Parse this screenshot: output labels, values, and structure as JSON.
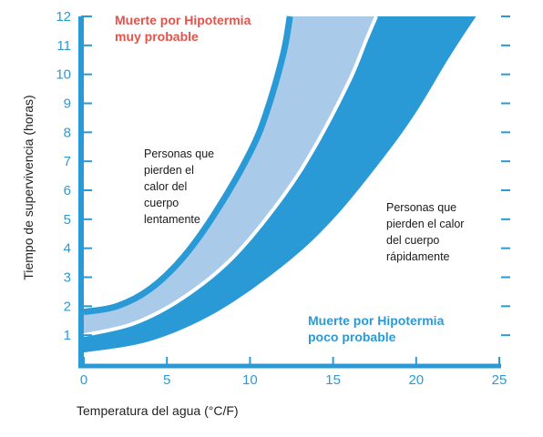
{
  "chart_data": {
    "type": "area",
    "xlabel": "Temperatura del agua (°C/F)",
    "ylabel": "Tiempo de supervivencia (horas)",
    "xlim": [
      0,
      25
    ],
    "ylim": [
      0,
      12
    ],
    "xticks": [
      0,
      5,
      10,
      15,
      20,
      25
    ],
    "yticks": [
      1,
      2,
      3,
      4,
      5,
      6,
      7,
      8,
      9,
      10,
      11,
      12
    ],
    "series": [
      {
        "role": "upper-curve",
        "x": [
          0,
          2,
          4,
          6,
          8,
          10,
          11,
          12,
          12.4
        ],
        "y": [
          1.8,
          2.0,
          2.6,
          3.7,
          5.3,
          7.3,
          8.7,
          10.7,
          12
        ]
      },
      {
        "role": "lower-curve",
        "x": [
          0,
          3,
          6,
          9,
          12,
          14,
          16,
          17,
          17.6
        ],
        "y": [
          1.0,
          1.4,
          2.3,
          3.7,
          5.8,
          7.6,
          9.8,
          11.2,
          12
        ]
      },
      {
        "role": "outer-curve",
        "x": [
          0,
          4,
          8,
          12,
          15,
          18,
          20,
          22,
          23.6
        ],
        "y": [
          0.4,
          0.8,
          1.8,
          3.4,
          5.0,
          7.1,
          8.7,
          10.6,
          12
        ]
      }
    ],
    "annotations": [
      {
        "lines": [
          "Muerte por Hipotermia",
          "muy probable"
        ]
      },
      {
        "lines": [
          "Personas que",
          "pierden el",
          "calor del",
          "cuerpo",
          "lentamente"
        ]
      },
      {
        "lines": [
          "Personas que",
          "pierden el calor",
          "del cuerpo",
          "rápidamente"
        ]
      },
      {
        "lines": [
          "Muerte por Hipotermia",
          "poco probable"
        ]
      }
    ]
  },
  "colors": {
    "axis": "#2a9ad6",
    "band_light": "#a9cbe9",
    "band_dark": "#2a9ad6",
    "danger_text": "#e5524a",
    "safe_text": "#2a9ad6"
  }
}
